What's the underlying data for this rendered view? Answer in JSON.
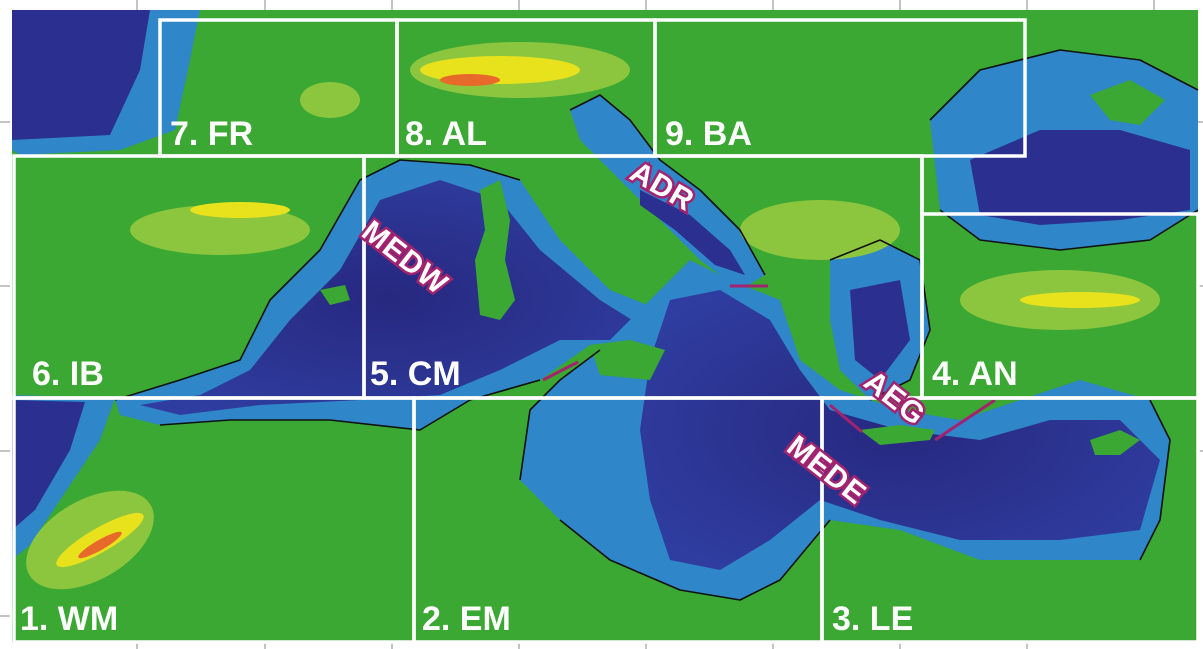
{
  "colors": {
    "land_low": "#3aa832",
    "land_mid": "#8cc63f",
    "land_high": "#e8e21c",
    "land_peak": "#e86a2a",
    "sea_shallow": "#2f86c8",
    "sea_deep": "#2b2f8f",
    "sea_label_outline": "#a3236f",
    "box_line": "#ffffff"
  },
  "regions": [
    {
      "id": "wm",
      "label": "1. WM"
    },
    {
      "id": "em",
      "label": "2. EM"
    },
    {
      "id": "le",
      "label": "3. LE"
    },
    {
      "id": "an",
      "label": "4. AN"
    },
    {
      "id": "cm",
      "label": "5. CM"
    },
    {
      "id": "ib",
      "label": "6. IB"
    },
    {
      "id": "fr",
      "label": "7. FR"
    },
    {
      "id": "al",
      "label": "8. AL"
    },
    {
      "id": "ba",
      "label": "9. BA"
    }
  ],
  "seas": [
    {
      "id": "medw",
      "label": "MEDW"
    },
    {
      "id": "adr",
      "label": "ADR"
    },
    {
      "id": "aeg",
      "label": "AEG"
    },
    {
      "id": "mede",
      "label": "MEDE"
    }
  ]
}
